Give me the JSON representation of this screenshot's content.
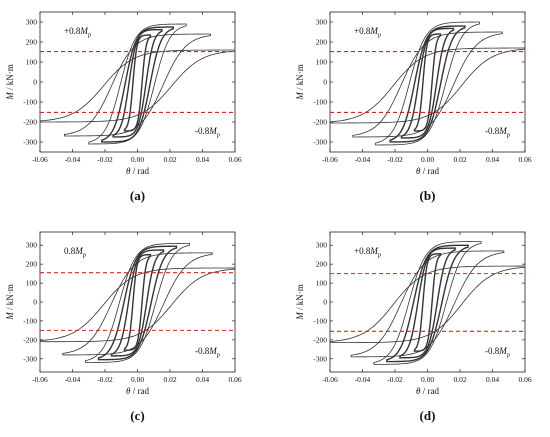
{
  "figure": {
    "panels": [
      {
        "label": "(a)",
        "pos_annotation": "+0.8",
        "neg_annotation": "-0.8"
      },
      {
        "label": "(b)",
        "pos_annotation": "+0.8",
        "neg_annotation": "-0.8"
      },
      {
        "label": "(c)",
        "pos_annotation": "0.8",
        "neg_annotation": "-0.8"
      },
      {
        "label": "(d)",
        "pos_annotation": "+0.8",
        "neg_annotation": "-0.8"
      }
    ],
    "annotation_symbol": "M",
    "annotation_subscript": "p"
  },
  "chart_data": [
    {
      "type": "line",
      "panel": "(a)",
      "xlabel_symbol": "θ",
      "xlabel_unit": " / rad",
      "ylabel_symbol": "M",
      "ylabel_unit": " / kN·m",
      "xlim": [
        -0.06,
        0.06
      ],
      "ylim": [
        -350,
        350
      ],
      "x_ticks": [
        -0.06,
        -0.04,
        -0.02,
        0.0,
        0.02,
        0.04,
        0.06
      ],
      "x_tick_labels": [
        "-0.06",
        "-0.04",
        "-0.02",
        "0.00",
        "0.02",
        "0.04",
        "0.06"
      ],
      "y_ticks": [
        -300,
        -200,
        -100,
        0,
        100,
        200,
        300
      ],
      "y_tick_labels": [
        "-300",
        "-200",
        "-100",
        "0",
        "100",
        "200",
        "300"
      ],
      "reference_lines": [
        152,
        -152
      ],
      "series": [
        {
          "loops": [
            {
              "max_rot": 0.008,
              "peak_pos": 235,
              "peak_neg": -245
            },
            {
              "max_rot": 0.015,
              "peak_pos": 262,
              "peak_neg": -275
            },
            {
              "max_rot": 0.022,
              "peak_pos": 275,
              "peak_neg": -300
            },
            {
              "max_rot": 0.03,
              "peak_pos": 290,
              "peak_neg": -310
            },
            {
              "max_rot": 0.045,
              "peak_pos": 240,
              "peak_neg": -270
            },
            {
              "max_rot": 0.06,
              "peak_pos": 160,
              "peak_neg": -200
            }
          ]
        }
      ]
    },
    {
      "type": "line",
      "panel": "(b)",
      "xlabel_symbol": "θ",
      "xlabel_unit": " / rad",
      "ylabel_symbol": "M",
      "ylabel_unit": " / kN·m",
      "xlim": [
        -0.06,
        0.06
      ],
      "ylim": [
        -350,
        350
      ],
      "x_ticks": [
        -0.06,
        -0.04,
        -0.02,
        0.0,
        0.02,
        0.04,
        0.06
      ],
      "x_tick_labels": [
        "-0.06",
        "-0.04",
        "-0.02",
        "0.00",
        "0.02",
        "0.04",
        "0.06"
      ],
      "y_ticks": [
        -300,
        -200,
        -100,
        0,
        100,
        200,
        300
      ],
      "y_tick_labels": [
        "-300",
        "-200",
        "-100",
        "0",
        "100",
        "200",
        "300"
      ],
      "reference_lines": [
        152,
        -152
      ],
      "series": [
        {
          "loops": [
            {
              "max_rot": 0.008,
              "peak_pos": 240,
              "peak_neg": -245
            },
            {
              "max_rot": 0.016,
              "peak_pos": 268,
              "peak_neg": -280
            },
            {
              "max_rot": 0.023,
              "peak_pos": 280,
              "peak_neg": -300
            },
            {
              "max_rot": 0.032,
              "peak_pos": 300,
              "peak_neg": -315
            },
            {
              "max_rot": 0.046,
              "peak_pos": 250,
              "peak_neg": -275
            },
            {
              "max_rot": 0.06,
              "peak_pos": 170,
              "peak_neg": -205
            }
          ]
        }
      ]
    },
    {
      "type": "line",
      "panel": "(c)",
      "xlabel_symbol": "θ",
      "xlabel_unit": " / rad",
      "ylabel_symbol": "M",
      "ylabel_unit": " / kN·m",
      "xlim": [
        -0.06,
        0.06
      ],
      "ylim": [
        -370,
        370
      ],
      "x_ticks": [
        -0.06,
        -0.04,
        -0.02,
        0.0,
        0.02,
        0.04,
        0.06
      ],
      "x_tick_labels": [
        "-0.06",
        "-0.04",
        "-0.02",
        "0.00",
        "0.02",
        "0.04",
        "0.06"
      ],
      "y_ticks": [
        -300,
        -200,
        -100,
        0,
        100,
        200,
        300
      ],
      "y_tick_labels": [
        "-300",
        "-200",
        "-100",
        "0",
        "100",
        "200",
        "300"
      ],
      "reference_lines": [
        155,
        -150
      ],
      "series": [
        {
          "loops": [
            {
              "max_rot": 0.008,
              "peak_pos": 250,
              "peak_neg": -255
            },
            {
              "max_rot": 0.016,
              "peak_pos": 275,
              "peak_neg": -285
            },
            {
              "max_rot": 0.024,
              "peak_pos": 295,
              "peak_neg": -305
            },
            {
              "max_rot": 0.032,
              "peak_pos": 310,
              "peak_neg": -320
            },
            {
              "max_rot": 0.046,
              "peak_pos": 260,
              "peak_neg": -280
            },
            {
              "max_rot": 0.06,
              "peak_pos": 180,
              "peak_neg": -210
            }
          ]
        }
      ]
    },
    {
      "type": "line",
      "panel": "(d)",
      "xlabel_symbol": "θ",
      "xlabel_unit": " / rad",
      "ylabel_symbol": "M",
      "ylabel_unit": " / kN·m",
      "xlim": [
        -0.06,
        0.06
      ],
      "ylim": [
        -370,
        370
      ],
      "x_ticks": [
        -0.06,
        -0.04,
        -0.02,
        0.0,
        0.02,
        0.04,
        0.06
      ],
      "x_tick_labels": [
        "-0.06",
        "-0.04",
        "-0.02",
        "0.00",
        "0.02",
        "0.04",
        "0.06"
      ],
      "y_ticks": [
        -300,
        -200,
        -100,
        0,
        100,
        200,
        300
      ],
      "y_tick_labels": [
        "-300",
        "-200",
        "-100",
        "0",
        "100",
        "200",
        "300"
      ],
      "reference_lines": [
        150,
        -155
      ],
      "series": [
        {
          "loops": [
            {
              "max_rot": 0.008,
              "peak_pos": 255,
              "peak_neg": -260
            },
            {
              "max_rot": 0.017,
              "peak_pos": 285,
              "peak_neg": -295
            },
            {
              "max_rot": 0.025,
              "peak_pos": 300,
              "peak_neg": -315
            },
            {
              "max_rot": 0.033,
              "peak_pos": 320,
              "peak_neg": -330
            },
            {
              "max_rot": 0.047,
              "peak_pos": 270,
              "peak_neg": -290
            },
            {
              "max_rot": 0.06,
              "peak_pos": 190,
              "peak_neg": -215
            }
          ]
        }
      ]
    }
  ],
  "colors": {
    "curve": "#333333",
    "reference_line": "#e0201b",
    "axis": "#222222"
  }
}
